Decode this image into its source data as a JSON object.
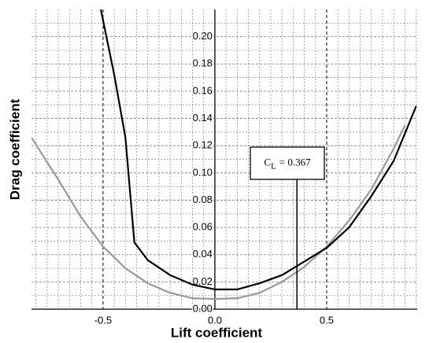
{
  "chart_data": {
    "type": "line",
    "x_label": "Lift coefficient",
    "y_label": "Drag coefficient",
    "xlim": [
      -0.82,
      0.905
    ],
    "ylim": [
      0,
      0.22
    ],
    "xticks": [
      -0.5,
      {
        "value": 0,
        "label": "0.0"
      },
      0.5
    ],
    "yticks": [
      {
        "value": 0,
        "label": "0.00"
      },
      {
        "value": 0.02,
        "label": "0.02"
      },
      {
        "value": 0.04,
        "label": "0.04"
      },
      {
        "value": 0.06,
        "label": "0.06"
      },
      {
        "value": 0.08,
        "label": "0.08"
      },
      {
        "value": 0.1,
        "label": "0.10"
      },
      {
        "value": 0.12,
        "label": "0.12"
      },
      {
        "value": 0.14,
        "label": "0.14"
      },
      {
        "value": 0.16,
        "label": "0.16"
      },
      {
        "value": 0.18,
        "label": "0.18"
      },
      {
        "value": 0.2,
        "label": "0.20"
      }
    ],
    "x_minor_ticks": [
      -0.8,
      -0.75,
      -0.7,
      -0.65,
      -0.6,
      -0.55,
      -0.45,
      -0.4,
      -0.35,
      -0.3,
      -0.25,
      -0.2,
      -0.15,
      -0.1,
      -0.05,
      0.05,
      0.1,
      0.15,
      0.2,
      0.25,
      0.3,
      0.35,
      0.4,
      0.45,
      0.55,
      0.6,
      0.65,
      0.7,
      0.75,
      0.8,
      0.85,
      0.9
    ],
    "y_minor_ticks": [
      0.01,
      0.03,
      0.05,
      0.07,
      0.09,
      0.11,
      0.13,
      0.15,
      0.17,
      0.19,
      0.21
    ],
    "grid": true,
    "series": [
      {
        "color": "#999999",
        "x": [
          -0.82,
          -0.7,
          -0.6,
          -0.5,
          -0.4,
          -0.3,
          -0.2,
          -0.1,
          0,
          0.1,
          0.2,
          0.3,
          0.4,
          0.5,
          0.6,
          0.7,
          0.8,
          0.85
        ],
        "values": [
          0.126,
          0.095,
          0.068,
          0.046,
          0.03,
          0.019,
          0.012,
          0.008,
          0.0075,
          0.008,
          0.012,
          0.02,
          0.031,
          0.046,
          0.065,
          0.088,
          0.118,
          0.135
        ]
      },
      {
        "color": "#000000",
        "x": [
          -0.51,
          -0.45,
          -0.4,
          -0.36,
          -0.3,
          -0.2,
          -0.1,
          0,
          0.1,
          0.2,
          0.3,
          0.4,
          0.5,
          0.6,
          0.7,
          0.8,
          0.9
        ],
        "values": [
          0.22,
          0.172,
          0.126,
          0.049,
          0.036,
          0.025,
          0.018,
          0.0145,
          0.0145,
          0.019,
          0.025,
          0.035,
          0.045,
          0.06,
          0.083,
          0.109,
          0.149
        ]
      }
    ],
    "annotation": {
      "symbol": "C",
      "subscript": "L",
      "value": 0.367,
      "value_label": "= 0.367"
    }
  }
}
